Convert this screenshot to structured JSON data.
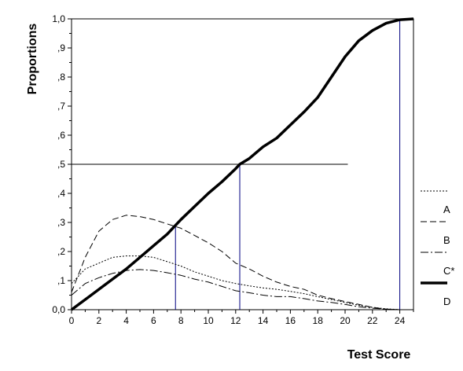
{
  "chart_data": {
    "type": "line",
    "xlabel": "Test Score",
    "ylabel": "Proportions",
    "xlim": [
      0,
      25
    ],
    "ylim": [
      0,
      1
    ],
    "x_ticks": [
      0,
      2,
      4,
      6,
      8,
      10,
      12,
      14,
      16,
      18,
      20,
      22,
      24
    ],
    "y_ticks": [
      {
        "value": 0.0,
        "label": "0,0"
      },
      {
        "value": 0.1,
        "label": ",1"
      },
      {
        "value": 0.2,
        "label": ",2"
      },
      {
        "value": 0.3,
        "label": ",3"
      },
      {
        "value": 0.4,
        "label": ",4"
      },
      {
        "value": 0.5,
        "label": ",5"
      },
      {
        "value": 0.6,
        "label": ",6"
      },
      {
        "value": 0.7,
        "label": ",7"
      },
      {
        "value": 0.8,
        "label": ",8"
      },
      {
        "value": 0.9,
        "label": ",9"
      },
      {
        "value": 1.0,
        "label": "1,0"
      }
    ],
    "grid": false,
    "legend_position": "right",
    "series": [
      {
        "name": "A",
        "style": "dotted",
        "points": [
          [
            0,
            0.09
          ],
          [
            1,
            0.14
          ],
          [
            2,
            0.16
          ],
          [
            3,
            0.18
          ],
          [
            4,
            0.185
          ],
          [
            5,
            0.185
          ],
          [
            6,
            0.18
          ],
          [
            7,
            0.165
          ],
          [
            8,
            0.15
          ],
          [
            9,
            0.13
          ],
          [
            10,
            0.115
          ],
          [
            11,
            0.1
          ],
          [
            12,
            0.09
          ],
          [
            13,
            0.082
          ],
          [
            14,
            0.075
          ],
          [
            15,
            0.07
          ],
          [
            16,
            0.063
          ],
          [
            17,
            0.055
          ],
          [
            18,
            0.045
          ],
          [
            19,
            0.035
          ],
          [
            20,
            0.025
          ],
          [
            21,
            0.015
          ],
          [
            22,
            0.008
          ],
          [
            23,
            0.003
          ],
          [
            24,
            0.0
          ]
        ]
      },
      {
        "name": "B",
        "style": "dash",
        "points": [
          [
            0,
            0.06
          ],
          [
            1,
            0.18
          ],
          [
            2,
            0.27
          ],
          [
            3,
            0.31
          ],
          [
            4,
            0.325
          ],
          [
            5,
            0.32
          ],
          [
            6,
            0.31
          ],
          [
            7,
            0.295
          ],
          [
            8,
            0.28
          ],
          [
            9,
            0.255
          ],
          [
            10,
            0.23
          ],
          [
            11,
            0.2
          ],
          [
            12,
            0.16
          ],
          [
            13,
            0.14
          ],
          [
            14,
            0.115
          ],
          [
            15,
            0.095
          ],
          [
            16,
            0.08
          ],
          [
            17,
            0.07
          ],
          [
            18,
            0.05
          ],
          [
            19,
            0.038
          ],
          [
            20,
            0.028
          ],
          [
            21,
            0.018
          ],
          [
            22,
            0.008
          ],
          [
            23,
            0.002
          ],
          [
            24,
            0.0
          ]
        ]
      },
      {
        "name": "C*",
        "style": "dash-dot",
        "points": [
          [
            0,
            0.05
          ],
          [
            1,
            0.09
          ],
          [
            2,
            0.11
          ],
          [
            3,
            0.125
          ],
          [
            4,
            0.135
          ],
          [
            5,
            0.138
          ],
          [
            6,
            0.135
          ],
          [
            7,
            0.127
          ],
          [
            8,
            0.118
          ],
          [
            9,
            0.105
          ],
          [
            10,
            0.095
          ],
          [
            11,
            0.08
          ],
          [
            12,
            0.065
          ],
          [
            13,
            0.058
          ],
          [
            14,
            0.05
          ],
          [
            15,
            0.045
          ],
          [
            16,
            0.045
          ],
          [
            17,
            0.038
          ],
          [
            18,
            0.03
          ],
          [
            19,
            0.025
          ],
          [
            20,
            0.018
          ],
          [
            21,
            0.01
          ],
          [
            22,
            0.005
          ],
          [
            23,
            0.002
          ],
          [
            24,
            0.0
          ]
        ]
      },
      {
        "name": "D",
        "style": "solid-thick",
        "points": [
          [
            0,
            0.0
          ],
          [
            1,
            0.035
          ],
          [
            2,
            0.07
          ],
          [
            3,
            0.105
          ],
          [
            4,
            0.14
          ],
          [
            5,
            0.18
          ],
          [
            6,
            0.22
          ],
          [
            7,
            0.26
          ],
          [
            7.6,
            0.29
          ],
          [
            8,
            0.31
          ],
          [
            9,
            0.355
          ],
          [
            10,
            0.4
          ],
          [
            11,
            0.44
          ],
          [
            12,
            0.485
          ],
          [
            12.3,
            0.5
          ],
          [
            13,
            0.52
          ],
          [
            14,
            0.56
          ],
          [
            15,
            0.59
          ],
          [
            16,
            0.635
          ],
          [
            17,
            0.68
          ],
          [
            18,
            0.73
          ],
          [
            19,
            0.8
          ],
          [
            20,
            0.87
          ],
          [
            21,
            0.925
          ],
          [
            22,
            0.96
          ],
          [
            23,
            0.985
          ],
          [
            24,
            0.997
          ],
          [
            25,
            1.0
          ]
        ]
      }
    ],
    "annotations": {
      "horizontal_line": {
        "y": 0.5,
        "x_from": 0,
        "x_to": 20.2
      },
      "vertical_lines": [
        {
          "x": 7.6,
          "y_to": 0.29
        },
        {
          "x": 12.3,
          "y_to": 0.5
        },
        {
          "x": 24.0,
          "y_to": 1.0
        }
      ]
    }
  }
}
